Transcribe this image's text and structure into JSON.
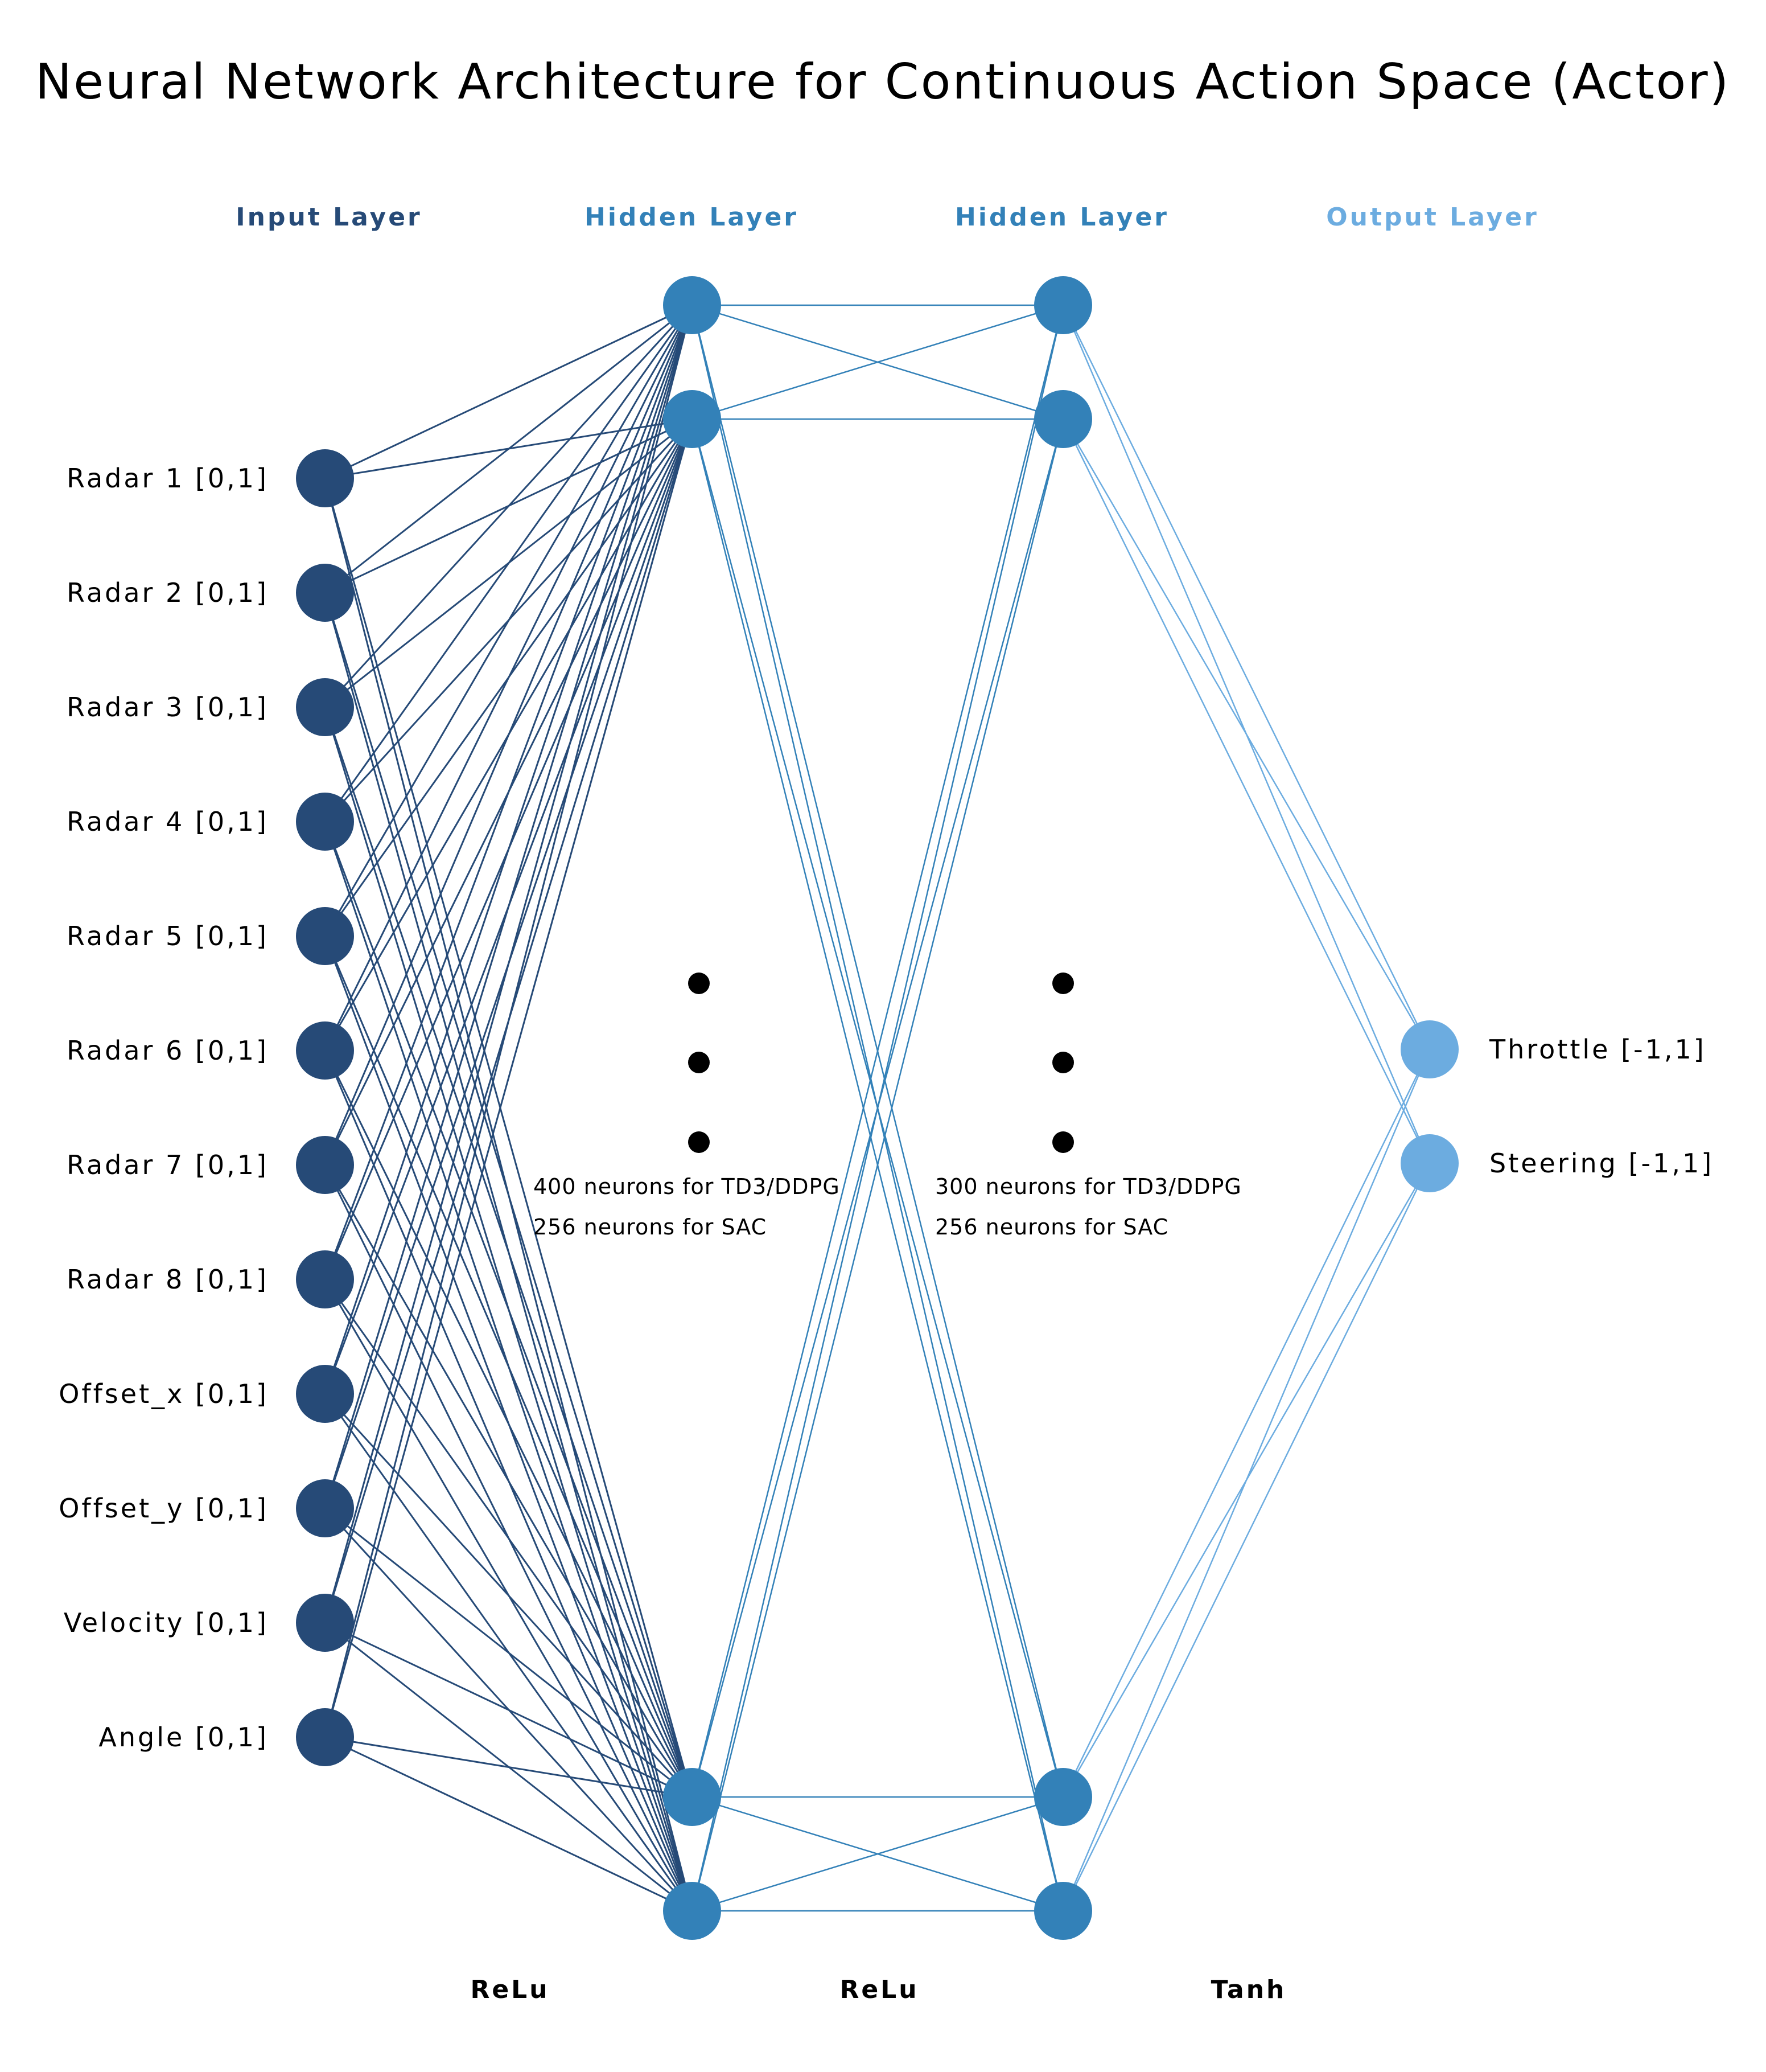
{
  "title": "Neural Network Architecture for Continuous Action Space (Actor)",
  "colors": {
    "input": "#264a77",
    "hidden": "#3381b8",
    "output": "#6cace0",
    "dots": "#000000"
  },
  "layers": [
    {
      "header": "Input Layer",
      "color": "#264a77",
      "nodes": [
        "Radar 1 [0,1]",
        "Radar 2 [0,1]",
        "Radar 3 [0,1]",
        "Radar 4 [0,1]",
        "Radar 5 [0,1]",
        "Radar 6 [0,1]",
        "Radar 7 [0,1]",
        "Radar 8 [0,1]",
        "Offset_x [0,1]",
        "Offset_y [0,1]",
        "Velocity [0,1]",
        "Angle [0,1]"
      ]
    },
    {
      "header": "Hidden Layer",
      "color": "#3381b8",
      "visible_nodes": 4,
      "note": [
        "400 neurons for TD3/DDPG",
        "256 neurons for SAC"
      ]
    },
    {
      "header": "Hidden Layer",
      "color": "#3381b8",
      "visible_nodes": 4,
      "note": [
        "300 neurons for TD3/DDPG",
        "256 neurons for SAC"
      ]
    },
    {
      "header": "Output Layer",
      "color": "#6cace0",
      "nodes": [
        "Throttle [-1,1]",
        "Steering [-1,1]"
      ]
    }
  ],
  "activations": [
    "ReLu",
    "ReLu",
    "Tanh"
  ]
}
